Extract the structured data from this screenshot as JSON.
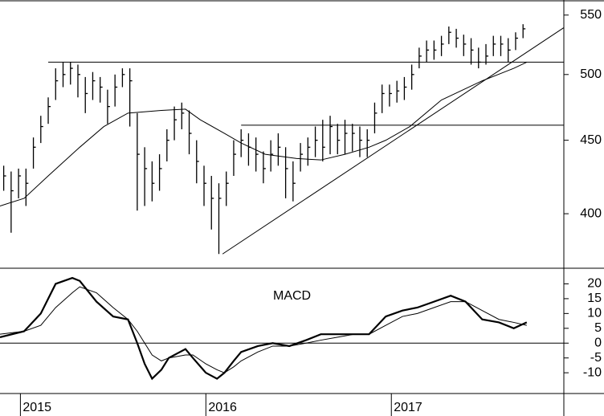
{
  "chart_data": [
    {
      "type": "ohlc",
      "color": "#000000",
      "log_scale": true,
      "xlim": [
        2014.89,
        2017.93
      ],
      "xticks": [
        2015,
        2016,
        2017
      ],
      "ylim": [
        367,
        562
      ],
      "yticks": [
        400,
        450,
        500,
        550
      ],
      "x": [
        2014.91,
        2014.95,
        2014.99,
        2015.03,
        2015.07,
        2015.11,
        2015.15,
        2015.19,
        2015.23,
        2015.27,
        2015.31,
        2015.35,
        2015.39,
        2015.43,
        2015.47,
        2015.51,
        2015.55,
        2015.59,
        2015.63,
        2015.67,
        2015.71,
        2015.75,
        2015.79,
        2015.83,
        2015.87,
        2015.91,
        2015.95,
        2015.99,
        2016.03,
        2016.07,
        2016.11,
        2016.15,
        2016.19,
        2016.23,
        2016.27,
        2016.31,
        2016.35,
        2016.39,
        2016.43,
        2016.47,
        2016.51,
        2016.55,
        2016.59,
        2016.63,
        2016.67,
        2016.71,
        2016.75,
        2016.79,
        2016.83,
        2016.87,
        2016.91,
        2016.95,
        2016.99,
        2017.03,
        2017.07,
        2017.11,
        2017.15,
        2017.19,
        2017.23,
        2017.27,
        2017.31,
        2017.35,
        2017.39,
        2017.43,
        2017.47,
        2017.51,
        2017.55,
        2017.59,
        2017.63,
        2017.67,
        2017.71
      ],
      "high": [
        432,
        428,
        430,
        430,
        452,
        468,
        482,
        505,
        510,
        510,
        508,
        498,
        502,
        498,
        488,
        500,
        505,
        505,
        470,
        445,
        435,
        440,
        458,
        475,
        478,
        472,
        450,
        432,
        425,
        420,
        428,
        450,
        458,
        455,
        452,
        442,
        450,
        455,
        445,
        435,
        448,
        452,
        460,
        465,
        468,
        462,
        465,
        462,
        460,
        458,
        478,
        492,
        492,
        495,
        498,
        508,
        522,
        528,
        528,
        532,
        540,
        538,
        533,
        530,
        522,
        525,
        532,
        532,
        530,
        535,
        542
      ],
      "low": [
        415,
        388,
        410,
        405,
        430,
        448,
        462,
        480,
        490,
        492,
        482,
        470,
        480,
        478,
        462,
        475,
        490,
        460,
        402,
        405,
        408,
        415,
        435,
        450,
        458,
        440,
        420,
        405,
        390,
        375,
        405,
        425,
        438,
        432,
        428,
        420,
        428,
        432,
        410,
        408,
        428,
        432,
        438,
        435,
        440,
        440,
        440,
        442,
        438,
        438,
        455,
        470,
        475,
        478,
        480,
        488,
        505,
        510,
        512,
        515,
        525,
        522,
        515,
        508,
        505,
        508,
        515,
        515,
        510,
        520,
        530
      ],
      "close": [
        425,
        415,
        425,
        420,
        445,
        460,
        475,
        495,
        500,
        505,
        500,
        485,
        495,
        490,
        475,
        490,
        500,
        495,
        440,
        430,
        420,
        430,
        450,
        465,
        470,
        455,
        435,
        420,
        410,
        410,
        420,
        440,
        450,
        445,
        440,
        430,
        440,
        445,
        430,
        420,
        440,
        445,
        450,
        445,
        460,
        450,
        455,
        455,
        450,
        450,
        470,
        485,
        485,
        487,
        490,
        500,
        515,
        520,
        520,
        525,
        535,
        530,
        525,
        520,
        510,
        515,
        525,
        525,
        520,
        530,
        538
      ],
      "moving_average": {
        "x": [
          2014.89,
          2015.02,
          2015.15,
          2015.32,
          2015.45,
          2015.58,
          2015.76,
          2015.89,
          2015.97,
          2016.1,
          2016.19,
          2016.32,
          2016.49,
          2016.62,
          2016.75,
          2016.88,
          2016.97,
          2017.1,
          2017.27,
          2017.49,
          2017.66,
          2017.73
        ],
        "values": [
          405,
          410,
          425,
          445,
          460,
          470,
          472,
          473,
          465,
          455,
          448,
          440,
          437,
          436,
          440,
          445,
          450,
          460,
          480,
          495,
          505,
          510
        ]
      },
      "trend_lines": [
        {
          "x": [
            2015.15,
            2017.93
          ],
          "y": [
            510,
            510
          ]
        },
        {
          "x": [
            2016.19,
            2017.93
          ],
          "y": [
            461,
            461
          ]
        },
        {
          "x": [
            2016.09,
            2017.93
          ],
          "y": [
            375,
            539
          ]
        }
      ]
    },
    {
      "type": "line",
      "annotation": "MACD",
      "hline": 0,
      "xlim": [
        2014.89,
        2017.93
      ],
      "ylim": [
        -17,
        25
      ],
      "yticks": [
        -10,
        -5,
        0,
        5,
        10,
        15,
        20
      ],
      "x": [
        2014.89,
        2015.02,
        2015.11,
        2015.19,
        2015.28,
        2015.32,
        2015.41,
        2015.5,
        2015.58,
        2015.63,
        2015.67,
        2015.71,
        2015.76,
        2015.8,
        2015.89,
        2015.93,
        2016.0,
        2016.06,
        2016.1,
        2016.15,
        2016.19,
        2016.28,
        2016.36,
        2016.45,
        2016.54,
        2016.62,
        2016.71,
        2016.8,
        2016.88,
        2016.97,
        2017.06,
        2017.14,
        2017.23,
        2017.32,
        2017.4,
        2017.49,
        2017.58,
        2017.66,
        2017.73
      ],
      "series": [
        {
          "color": "#000000",
          "width": 2.2,
          "values": [
            2,
            4,
            10,
            20,
            22,
            21,
            14,
            9,
            8,
            0,
            -7,
            -12,
            -9,
            -5,
            -2,
            -5,
            -10,
            -12,
            -10,
            -6,
            -3,
            -1,
            0,
            -1,
            1,
            3,
            3,
            3,
            3,
            9,
            11,
            12,
            14,
            16,
            14,
            8,
            7,
            5,
            7
          ]
        },
        {
          "color": "#000000",
          "width": 1,
          "values": [
            3,
            4,
            6,
            12,
            17,
            19,
            17,
            12,
            8,
            4,
            0,
            -4,
            -6,
            -5,
            -4,
            -4,
            -7,
            -9,
            -10,
            -8,
            -6,
            -3,
            -1,
            -1,
            0,
            1,
            2,
            3,
            3,
            6,
            9,
            10,
            12,
            14,
            14,
            11,
            8,
            7,
            6
          ]
        }
      ]
    }
  ]
}
